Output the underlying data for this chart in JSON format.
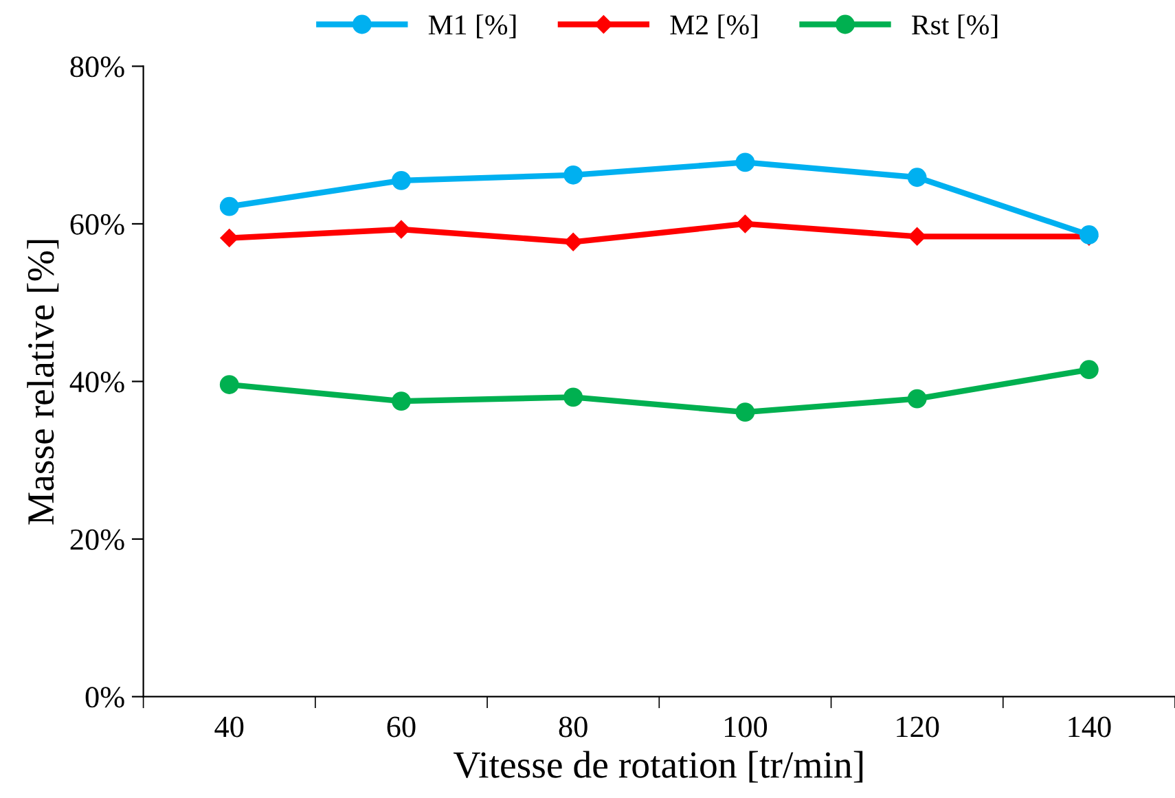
{
  "chart_data": {
    "type": "line",
    "xlabel": "Vitesse de rotation [tr/min]",
    "ylabel": "Masse relative [%]",
    "categories": [
      "40",
      "60",
      "80",
      "100",
      "120",
      "140"
    ],
    "series": [
      {
        "name": "M1 [%]",
        "color": "#00b0f0",
        "marker": "circle",
        "values": [
          62.2,
          65.5,
          66.2,
          67.8,
          65.9,
          58.6
        ]
      },
      {
        "name": "M2 [%]",
        "color": "#ff0000",
        "marker": "diamond",
        "values": [
          58.2,
          59.3,
          57.7,
          60.0,
          58.4,
          58.4
        ]
      },
      {
        "name": "Rst [%]",
        "color": "#00b050",
        "marker": "circle",
        "values": [
          39.6,
          37.5,
          38.0,
          36.1,
          37.8,
          41.5
        ]
      }
    ],
    "ylim": [
      0,
      80
    ],
    "yticks": [
      {
        "value": 0,
        "label": "0%"
      },
      {
        "value": 20,
        "label": "20%"
      },
      {
        "value": 40,
        "label": "40%"
      },
      {
        "value": 60,
        "label": "60%"
      },
      {
        "value": 80,
        "label": "80%"
      }
    ],
    "grid": false,
    "legend": "top",
    "line_style": "solid"
  }
}
